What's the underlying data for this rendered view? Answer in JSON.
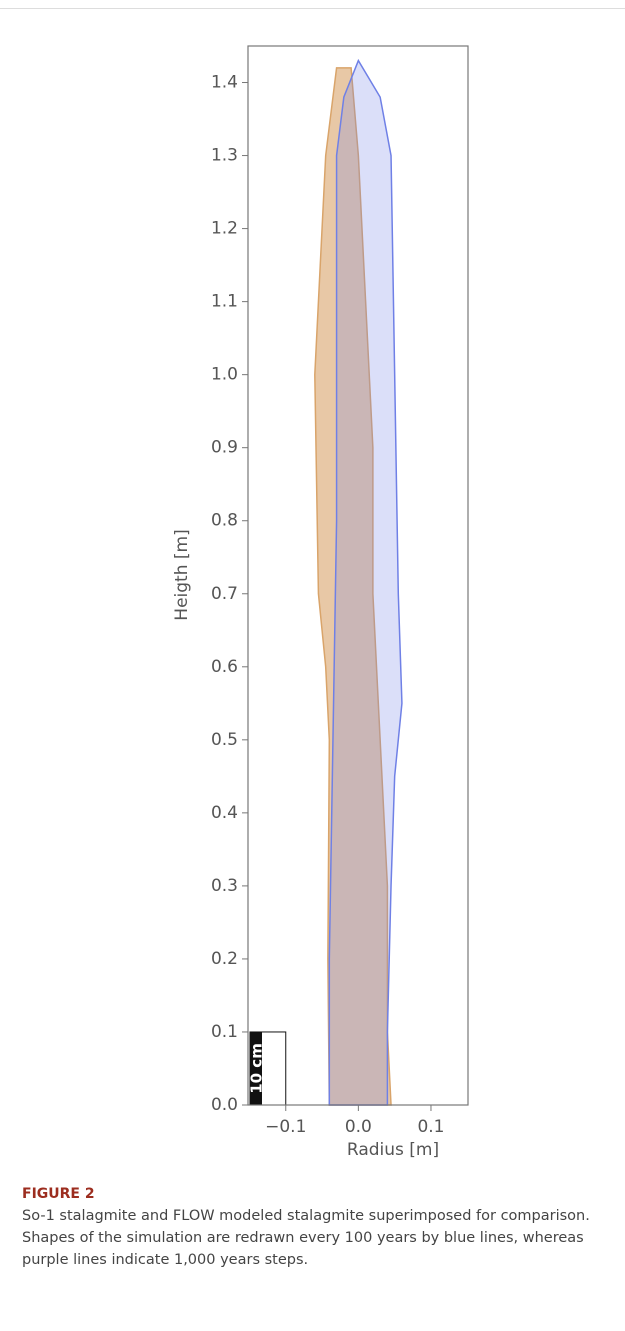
{
  "chart_data": {
    "type": "line",
    "x_label": "Radius [m]",
    "y_label": "Heigth [m]",
    "xlim": [
      -0.152,
      0.151
    ],
    "ylim": [
      0,
      1.45
    ],
    "xticks": [
      {
        "value": -0.1,
        "label": "−0.1"
      },
      {
        "value": 0,
        "label": "0.0"
      },
      0.1
    ],
    "yticks": [
      {
        "value": 0,
        "label": "0.0"
      },
      0.1,
      0.2,
      0.3,
      0.4,
      0.5,
      0.6,
      0.7,
      0.8,
      0.9,
      {
        "value": 1,
        "label": "1.0"
      },
      1.1,
      1.2,
      1.3,
      1.4
    ],
    "scale_bar_label": "10 cm",
    "scale_bar_height": 0.1,
    "series": [
      {
        "color": "#d9a46a",
        "x": [
          -0.04,
          -0.042,
          -0.04,
          -0.045,
          -0.055,
          -0.06,
          -0.05,
          -0.045,
          -0.03,
          -0.01,
          0.0,
          0.01,
          0.02,
          0.02,
          0.03,
          0.04,
          0.04,
          0.045
        ],
        "values": [
          0,
          0.2,
          0.5,
          0.6,
          0.7,
          1.0,
          1.2,
          1.3,
          1.42,
          1.42,
          1.3,
          1.1,
          0.9,
          0.7,
          0.5,
          0.3,
          0.1,
          0
        ]
      },
      {
        "color": "#6f80e6",
        "x": [
          -0.04,
          -0.04,
          -0.035,
          -0.03,
          -0.03,
          -0.03,
          -0.02,
          0,
          0.03,
          0.045,
          0.05,
          0.055,
          0.06,
          0.05,
          0.045,
          0.04,
          0.04
        ],
        "values": [
          0,
          0.2,
          0.5,
          0.8,
          1.1,
          1.3,
          1.38,
          1.43,
          1.38,
          1.3,
          1.0,
          0.7,
          0.55,
          0.45,
          0.3,
          0.1,
          0
        ]
      }
    ]
  },
  "caption": {
    "label": "FIGURE 2",
    "text": "So-1 stalagmite and FLOW modeled stalagmite superimposed for comparison. Shapes of the simulation are redrawn every 100 years by blue lines, whereas purple lines indicate 1,000 years steps."
  }
}
